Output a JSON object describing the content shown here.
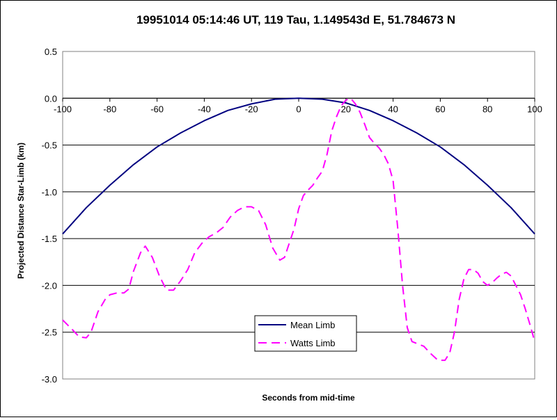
{
  "chart_data": {
    "type": "line",
    "title": "19951014 05:14:46 UT, 119 Tau, 1.149543d E, 51.784673 N",
    "xlabel": "Seconds from mid-time",
    "ylabel": "Projected Distance Star-Limb (km)",
    "xlim": [
      -100,
      100
    ],
    "ylim": [
      -3.0,
      0.5
    ],
    "xticks": [
      -100,
      -80,
      -60,
      -40,
      -20,
      0,
      20,
      40,
      60,
      80,
      100
    ],
    "yticks": [
      0.5,
      0.0,
      -0.5,
      -1.0,
      -1.5,
      -2.0,
      -2.5,
      -3.0
    ],
    "ytick_labels": [
      "0.5",
      "0.0",
      "-0.5",
      "-1.0",
      "-1.5",
      "-2.0",
      "-2.5",
      "-3.0"
    ],
    "grid": "horizontal",
    "legend_position": "bottom-center",
    "series": [
      {
        "name": "Mean Limb",
        "color": "#000080",
        "dash": "solid",
        "x": [
          -100,
          -90,
          -80,
          -70,
          -60,
          -50,
          -40,
          -30,
          -20,
          -10,
          0,
          10,
          20,
          30,
          40,
          50,
          60,
          70,
          80,
          90,
          100
        ],
        "y": [
          -1.45,
          -1.17,
          -0.93,
          -0.71,
          -0.52,
          -0.37,
          -0.24,
          -0.13,
          -0.06,
          -0.01,
          0.0,
          -0.01,
          -0.05,
          -0.13,
          -0.24,
          -0.37,
          -0.52,
          -0.71,
          -0.93,
          -1.17,
          -1.45
        ]
      },
      {
        "name": "Watts Limb",
        "color": "#FF00FF",
        "dash": "dashed",
        "x": [
          -100,
          -96,
          -93,
          -90,
          -88,
          -85,
          -82,
          -80,
          -77,
          -74,
          -72,
          -70,
          -67,
          -65,
          -62,
          -59,
          -56,
          -53,
          -50,
          -47,
          -44,
          -41,
          -38,
          -35,
          -32,
          -29,
          -26,
          -23,
          -20,
          -17,
          -14,
          -11,
          -8,
          -6,
          -4,
          -2,
          0,
          2,
          4,
          6,
          8,
          10,
          12,
          14,
          16,
          18,
          20,
          21,
          22,
          23,
          24,
          26,
          28,
          30,
          32,
          34,
          36,
          38,
          40,
          42,
          44,
          46,
          48,
          50,
          53,
          56,
          59,
          62,
          64,
          66,
          68,
          70,
          72,
          74,
          76,
          78,
          80,
          82,
          84,
          86,
          88,
          90,
          92,
          94,
          96,
          98,
          100
        ],
        "y": [
          -2.37,
          -2.47,
          -2.55,
          -2.56,
          -2.5,
          -2.28,
          -2.15,
          -2.1,
          -2.08,
          -2.08,
          -2.04,
          -1.85,
          -1.65,
          -1.58,
          -1.7,
          -1.9,
          -2.05,
          -2.05,
          -1.95,
          -1.83,
          -1.65,
          -1.55,
          -1.48,
          -1.44,
          -1.38,
          -1.27,
          -1.2,
          -1.16,
          -1.16,
          -1.2,
          -1.35,
          -1.6,
          -1.73,
          -1.7,
          -1.55,
          -1.4,
          -1.18,
          -1.04,
          -0.98,
          -0.93,
          -0.85,
          -0.78,
          -0.6,
          -0.35,
          -0.2,
          -0.08,
          -0.02,
          -0.01,
          0.0,
          -0.03,
          -0.06,
          -0.15,
          -0.28,
          -0.42,
          -0.48,
          -0.53,
          -0.6,
          -0.7,
          -0.88,
          -1.4,
          -2.0,
          -2.45,
          -2.6,
          -2.62,
          -2.65,
          -2.73,
          -2.8,
          -2.8,
          -2.72,
          -2.5,
          -2.15,
          -1.93,
          -1.83,
          -1.83,
          -1.87,
          -1.96,
          -2.0,
          -1.97,
          -1.92,
          -1.88,
          -1.86,
          -1.9,
          -2.0,
          -2.1,
          -2.25,
          -2.42,
          -2.6
        ]
      }
    ]
  }
}
